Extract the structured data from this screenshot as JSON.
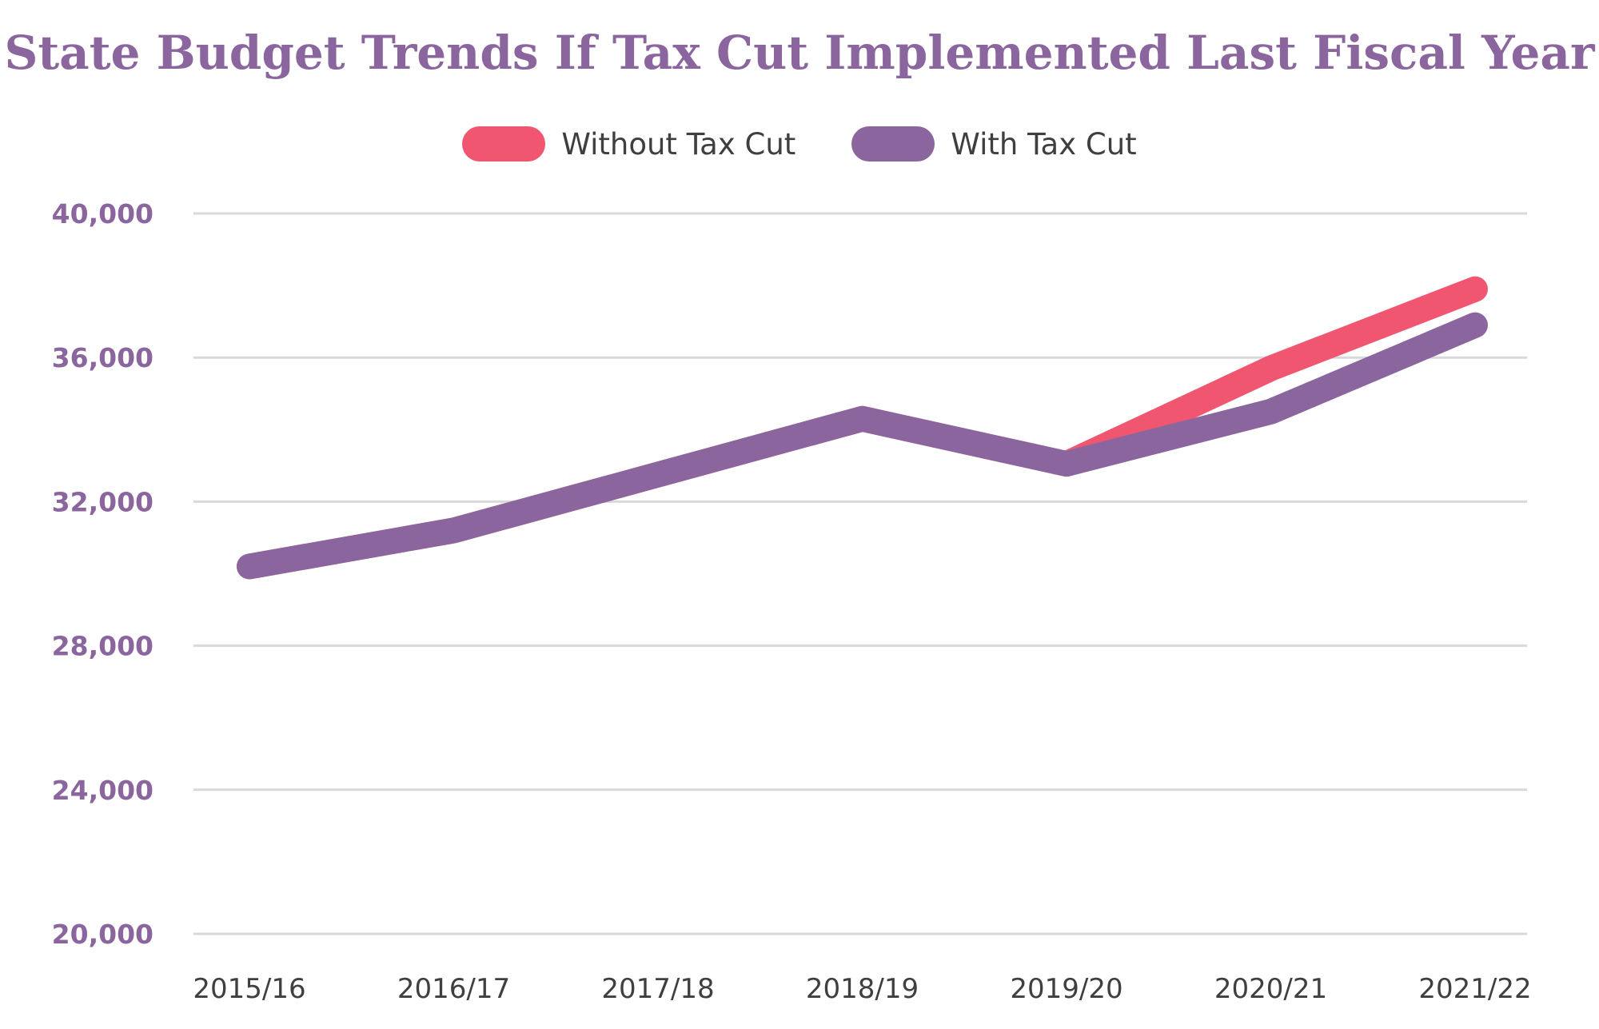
{
  "chart_data": {
    "type": "line",
    "title": "State Budget Trends If Tax Cut Implemented Last Fiscal Year",
    "xlabel": "",
    "ylabel": "",
    "categories": [
      "2015/16",
      "2016/17",
      "2017/18",
      "2018/19",
      "2019/20",
      "2020/21",
      "2021/22"
    ],
    "yticks": [
      20000,
      24000,
      28000,
      32000,
      36000,
      40000
    ],
    "ytick_labels": [
      "20,000",
      "24,000",
      "28,000",
      "32,000",
      "36,000",
      "40,000"
    ],
    "ylim": [
      20000,
      40000
    ],
    "grid": "horizontal",
    "legend_position": "top-center",
    "series": [
      {
        "name": "Without Tax Cut",
        "color": "#f0566f",
        "values": [
          30200,
          31200,
          32750,
          34300,
          33050,
          35700,
          37900
        ]
      },
      {
        "name": "With Tax Cut",
        "color": "#8b669e",
        "values": [
          30200,
          31200,
          32750,
          34300,
          33050,
          34500,
          36900
        ]
      }
    ]
  }
}
